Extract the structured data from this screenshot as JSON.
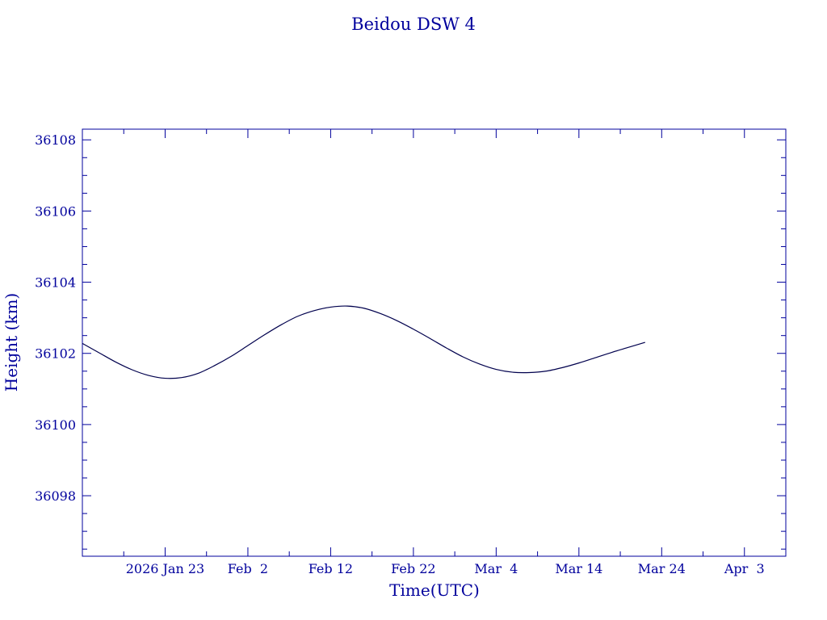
{
  "chart_data": {
    "type": "line",
    "title": "Beidou DSW 4",
    "xlabel": "Time(UTC)",
    "ylabel": "Height (km)",
    "x_ticks": [
      "2026 Jan 23",
      "Feb  2",
      "Feb 12",
      "Feb 22",
      "Mar  4",
      "Mar 14",
      "Mar 24",
      "Apr  3"
    ],
    "y_ticks": [
      "36098",
      "36100",
      "36102",
      "36104",
      "36106",
      "36108"
    ],
    "x_range": [
      "2026-01-13",
      "2026-04-08"
    ],
    "ylim": [
      36096.3,
      36108.3
    ],
    "grid": false,
    "colors": {
      "axes": "#00009c",
      "line": "#00004d",
      "text": "#00009c"
    },
    "series": [
      {
        "x": [
          "2026-01-13",
          "2026-01-15",
          "2026-01-17",
          "2026-01-19",
          "2026-01-21",
          "2026-01-23",
          "2026-01-25",
          "2026-01-27",
          "2026-01-29",
          "2026-01-31",
          "2026-02-02",
          "2026-02-04",
          "2026-02-06",
          "2026-02-08",
          "2026-02-10",
          "2026-02-12",
          "2026-02-14",
          "2026-02-16",
          "2026-02-18",
          "2026-02-20",
          "2026-02-22",
          "2026-02-24",
          "2026-02-26",
          "2026-02-28",
          "2026-03-02",
          "2026-03-04",
          "2026-03-06",
          "2026-03-08",
          "2026-03-10",
          "2026-03-12",
          "2026-03-14",
          "2026-03-16",
          "2026-03-18",
          "2026-03-20",
          "2026-03-22"
        ],
        "y": [
          36102.28,
          36102.02,
          36101.76,
          36101.54,
          36101.38,
          36101.3,
          36101.32,
          36101.44,
          36101.66,
          36101.92,
          36102.22,
          36102.52,
          36102.8,
          36103.04,
          36103.2,
          36103.3,
          36103.33,
          36103.27,
          36103.12,
          36102.92,
          36102.68,
          36102.42,
          36102.15,
          36101.9,
          36101.7,
          36101.55,
          36101.47,
          36101.46,
          36101.5,
          36101.6,
          36101.73,
          36101.88,
          36102.03,
          36102.17,
          36102.31
        ]
      }
    ]
  }
}
